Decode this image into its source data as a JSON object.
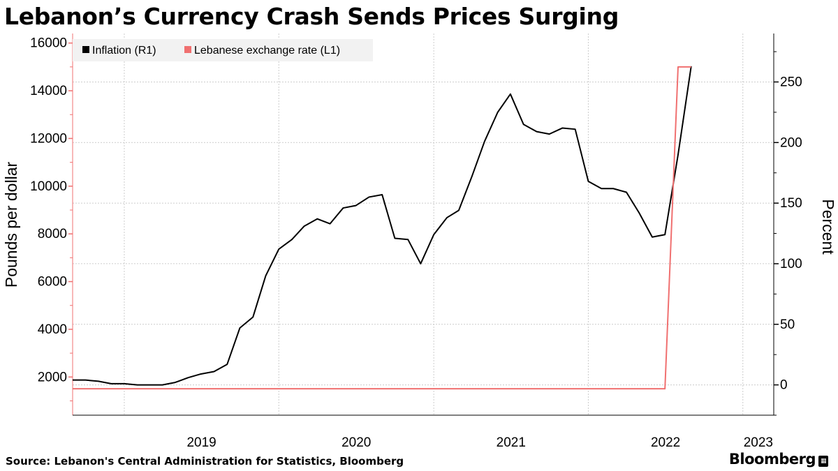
{
  "title": "Lebanon’s Currency Crash Sends Prices Surging",
  "source": "Source: Lebanon's Central Administration for Statistics, Bloomberg",
  "brand": "Bloomberg",
  "brand_icon": "bloomberg-terminal-icon",
  "colors": {
    "inflation": "#000000",
    "exchange": "#f07070",
    "legend_bg": "#f2f2f2",
    "grid": "#cccccc"
  },
  "chart_data": {
    "type": "line",
    "legend": {
      "placement": "top-left"
    },
    "grid": true,
    "x_ticks": [
      "2019",
      "2020",
      "2021",
      "2022",
      "2023"
    ],
    "x_range": [
      "2018-09-01",
      "2023-03-15"
    ],
    "left_axis": {
      "label": "Pounds per dollar",
      "ticks": [
        2000,
        4000,
        6000,
        8000,
        10000,
        12000,
        14000,
        16000
      ],
      "range": [
        400,
        16400
      ]
    },
    "right_axis": {
      "label": "Percent",
      "ticks": [
        0,
        50,
        100,
        150,
        200,
        250
      ],
      "range": [
        -25,
        290
      ]
    },
    "series": [
      {
        "name": "Inflation (R1)",
        "axis": "right",
        "color": "#000000",
        "points": [
          [
            "2018-09",
            4
          ],
          [
            "2018-10",
            4
          ],
          [
            "2018-11",
            3
          ],
          [
            "2018-12",
            1
          ],
          [
            "2019-01",
            1
          ],
          [
            "2019-02",
            0
          ],
          [
            "2019-03",
            0
          ],
          [
            "2019-04",
            0
          ],
          [
            "2019-05",
            2
          ],
          [
            "2019-06",
            6
          ],
          [
            "2019-07",
            9
          ],
          [
            "2019-08",
            11
          ],
          [
            "2019-09",
            17
          ],
          [
            "2019-10",
            47
          ],
          [
            "2019-11",
            56
          ],
          [
            "2019-12",
            90
          ],
          [
            "2020-01",
            112
          ],
          [
            "2020-02",
            120
          ],
          [
            "2020-03",
            131
          ],
          [
            "2020-04",
            137
          ],
          [
            "2020-05",
            133
          ],
          [
            "2020-06",
            146
          ],
          [
            "2020-07",
            148
          ],
          [
            "2020-08",
            155
          ],
          [
            "2020-09",
            157
          ],
          [
            "2020-10",
            121
          ],
          [
            "2020-11",
            120
          ],
          [
            "2020-12",
            100
          ],
          [
            "2021-01",
            124
          ],
          [
            "2021-02",
            138
          ],
          [
            "2021-03",
            144
          ],
          [
            "2021-04",
            172
          ],
          [
            "2021-05",
            201
          ],
          [
            "2021-06",
            225
          ],
          [
            "2021-07",
            240
          ],
          [
            "2021-08",
            215
          ],
          [
            "2021-09",
            209
          ],
          [
            "2021-10",
            207
          ],
          [
            "2021-11",
            212
          ],
          [
            "2021-12",
            211
          ],
          [
            "2022-01",
            168
          ],
          [
            "2022-02",
            162
          ],
          [
            "2022-03",
            162
          ],
          [
            "2022-04",
            159
          ],
          [
            "2022-05",
            142
          ],
          [
            "2022-06",
            122
          ],
          [
            "2022-07",
            124
          ],
          [
            "2022-08",
            190
          ],
          [
            "2022-09",
            263
          ]
        ]
      },
      {
        "name": "Lebanese exchange rate (L1)",
        "axis": "left",
        "color": "#f07070",
        "points": [
          [
            "2018-09",
            1507
          ],
          [
            "2022-06",
            1507
          ],
          [
            "2022-07",
            1507
          ],
          [
            "2022-08",
            15000
          ],
          [
            "2022-09",
            15000
          ]
        ]
      }
    ]
  }
}
